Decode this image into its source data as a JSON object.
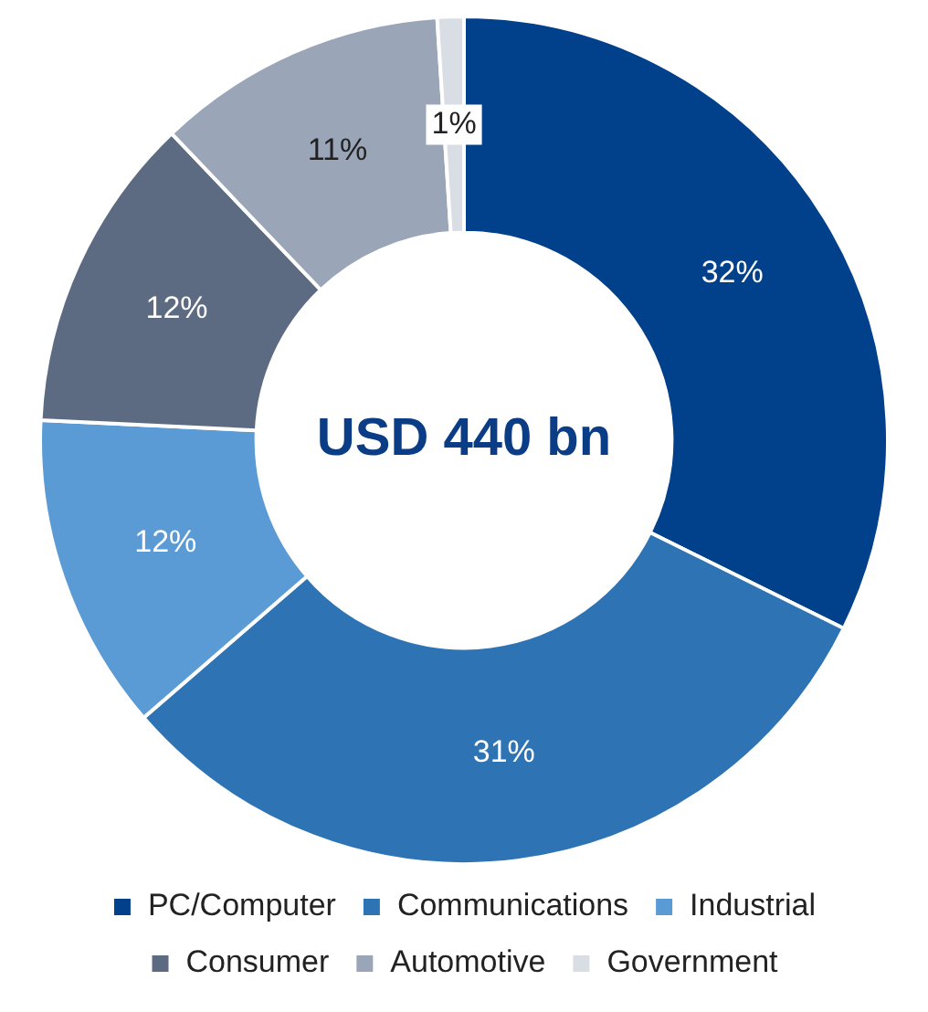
{
  "chart_data": {
    "type": "donut",
    "categories": [
      "PC/Computer",
      "Communications",
      "Industrial",
      "Consumer",
      "Automotive",
      "Government"
    ],
    "values": [
      32,
      31,
      12,
      12,
      11,
      1
    ],
    "colors": [
      "#01408a",
      "#2e74b5",
      "#5b9bd5",
      "#5d6b82",
      "#9aa6b8",
      "#d9dde4"
    ],
    "annotations": [
      "USD 440 bn"
    ],
    "value_labels": [
      "32%",
      "31%",
      "12%",
      "12%",
      "11%",
      "1%"
    ],
    "legend": "bottom"
  }
}
